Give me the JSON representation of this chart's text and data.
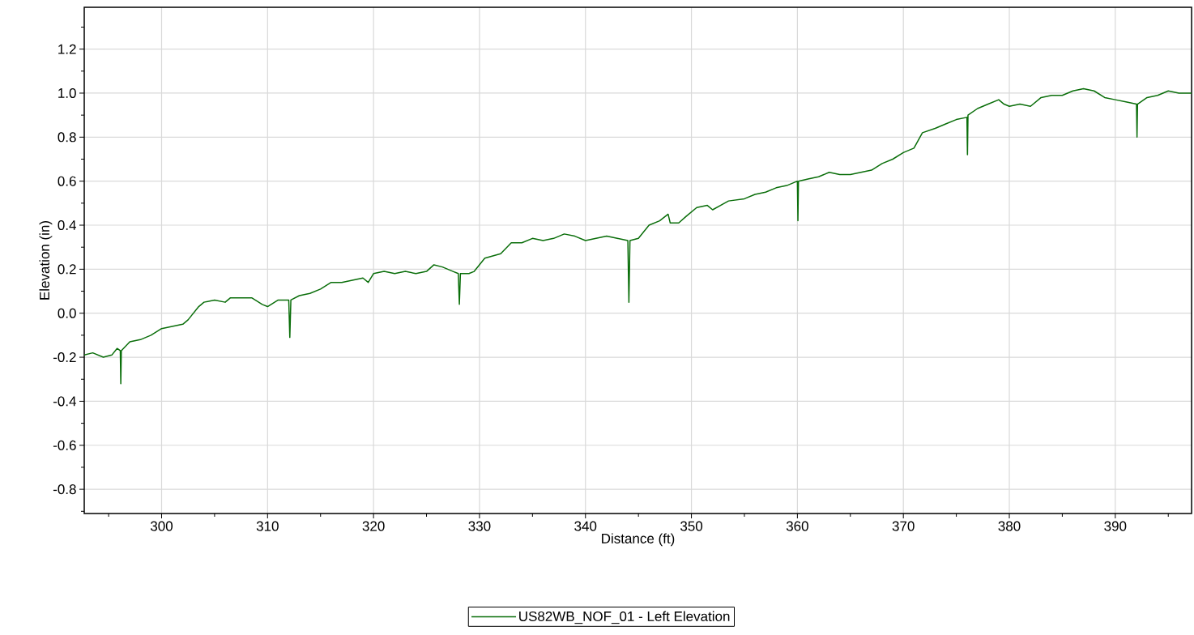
{
  "chart_data": {
    "type": "line",
    "xlabel": "Distance (ft)",
    "ylabel": "Elevation (in)",
    "xlim": [
      292.7,
      397.2
    ],
    "ylim": [
      -0.91,
      1.39
    ],
    "xticks": [
      {
        "value": 295,
        "label": null
      },
      300,
      {
        "value": 305,
        "label": null
      },
      310,
      {
        "value": 315,
        "label": null
      },
      320,
      {
        "value": 325,
        "label": null
      },
      330,
      {
        "value": 335,
        "label": null
      },
      340,
      {
        "value": 345,
        "label": null
      },
      350,
      {
        "value": 355,
        "label": null
      },
      360,
      {
        "value": 365,
        "label": null
      },
      370,
      {
        "value": 375,
        "label": null
      },
      380,
      {
        "value": 385,
        "label": null
      },
      390,
      {
        "value": 395,
        "label": null
      }
    ],
    "yticks": [
      {
        "value": -0.9,
        "label": null
      },
      {
        "value": -0.8,
        "label": "-0.8"
      },
      {
        "value": -0.7,
        "label": null
      },
      {
        "value": -0.6,
        "label": "-0.6"
      },
      {
        "value": -0.5,
        "label": null
      },
      {
        "value": -0.4,
        "label": "-0.4"
      },
      {
        "value": -0.3,
        "label": null
      },
      {
        "value": -0.2,
        "label": "-0.2"
      },
      {
        "value": -0.1,
        "label": null
      },
      {
        "value": 0.0,
        "label": "0.0"
      },
      {
        "value": 0.1,
        "label": null
      },
      {
        "value": 0.2,
        "label": "0.2"
      },
      {
        "value": 0.3,
        "label": null
      },
      {
        "value": 0.4,
        "label": "0.4"
      },
      {
        "value": 0.5,
        "label": null
      },
      {
        "value": 0.6,
        "label": "0.6"
      },
      {
        "value": 0.7,
        "label": null
      },
      {
        "value": 0.8,
        "label": "0.8"
      },
      {
        "value": 0.9,
        "label": null
      },
      {
        "value": 1.0,
        "label": "1.0"
      },
      {
        "value": 1.1,
        "label": null
      },
      {
        "value": 1.2,
        "label": "1.2"
      },
      {
        "value": 1.3,
        "label": null
      }
    ],
    "grid": true,
    "legend": "bottom",
    "marker": "none",
    "line_style": "solid",
    "series": [
      {
        "name": "US82WB_NOF_01 - Left Elevation",
        "color": "#0a6e0a",
        "x": [
          292.7,
          293.5,
          294.5,
          295.3,
          295.8,
          296.1,
          296.15,
          296.2,
          297,
          298,
          299,
          300,
          301,
          302,
          302.5,
          303.5,
          304,
          305,
          306,
          306.5,
          307.5,
          308.5,
          309.5,
          310,
          311,
          312,
          312.1,
          312.2,
          313,
          314,
          315,
          316,
          317,
          318,
          319,
          319.5,
          320,
          321,
          322,
          323,
          324,
          325,
          325.7,
          326.5,
          327.5,
          328,
          328.1,
          328.2,
          329,
          329.5,
          330.5,
          332,
          333,
          334,
          335,
          336,
          337,
          338,
          339,
          340,
          341,
          342,
          343,
          344,
          344.1,
          344.2,
          345,
          346,
          347,
          347.8,
          348,
          348.8,
          349.5,
          350.5,
          351.5,
          352,
          353.5,
          355,
          356,
          357,
          358,
          359,
          360,
          360.05,
          360.1,
          361,
          362,
          363,
          364,
          365,
          366,
          367,
          368,
          369,
          370,
          371,
          371.8,
          373,
          374,
          375,
          376,
          376.05,
          376.1,
          377,
          378,
          379,
          379.5,
          380,
          381,
          382,
          383,
          384,
          385,
          386,
          387,
          388,
          389,
          390,
          391,
          392,
          392.05,
          392.1,
          393,
          394,
          395,
          396,
          397.2
        ],
        "values": [
          -0.19,
          -0.18,
          -0.2,
          -0.19,
          -0.16,
          -0.17,
          -0.32,
          -0.17,
          -0.13,
          -0.12,
          -0.1,
          -0.07,
          -0.06,
          -0.05,
          -0.03,
          0.03,
          0.05,
          0.06,
          0.05,
          0.07,
          0.07,
          0.07,
          0.04,
          0.03,
          0.06,
          0.06,
          -0.11,
          0.06,
          0.08,
          0.09,
          0.11,
          0.14,
          0.14,
          0.15,
          0.16,
          0.14,
          0.18,
          0.19,
          0.18,
          0.19,
          0.18,
          0.19,
          0.22,
          0.21,
          0.19,
          0.18,
          0.04,
          0.18,
          0.18,
          0.19,
          0.25,
          0.27,
          0.32,
          0.32,
          0.34,
          0.33,
          0.34,
          0.36,
          0.35,
          0.33,
          0.34,
          0.35,
          0.34,
          0.33,
          0.05,
          0.33,
          0.34,
          0.4,
          0.42,
          0.45,
          0.41,
          0.41,
          0.44,
          0.48,
          0.49,
          0.47,
          0.51,
          0.52,
          0.54,
          0.55,
          0.57,
          0.58,
          0.6,
          0.42,
          0.6,
          0.61,
          0.62,
          0.64,
          0.63,
          0.63,
          0.64,
          0.65,
          0.68,
          0.7,
          0.73,
          0.75,
          0.82,
          0.84,
          0.86,
          0.88,
          0.89,
          0.72,
          0.9,
          0.93,
          0.95,
          0.97,
          0.95,
          0.94,
          0.95,
          0.94,
          0.98,
          0.99,
          0.99,
          1.01,
          1.02,
          1.01,
          0.98,
          0.97,
          0.96,
          0.95,
          0.8,
          0.95,
          0.98,
          0.99,
          1.01,
          1.0,
          1.0
        ]
      }
    ]
  }
}
